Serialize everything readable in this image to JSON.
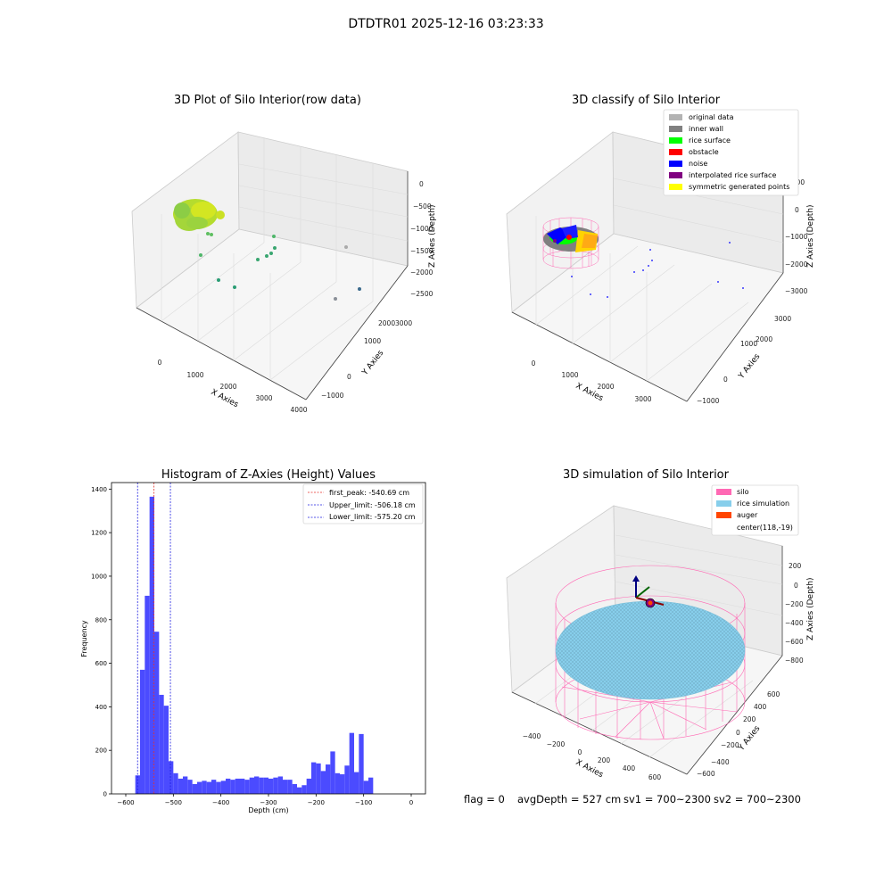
{
  "figure_title": "DTDTR01 2025-12-16 03:23:33",
  "footer": {
    "flag": "flag = 0",
    "avg_depth": "avgDepth = 527 cm",
    "sv1": "sv1 = 700~2300",
    "sv2": "sv2 = 700~2300"
  },
  "colors": {
    "original": "#b3b3b3",
    "inner_wall": "#808080",
    "rice_surface": "#00ff00",
    "obstacle": "#ff0000",
    "noise": "#0000ff",
    "interpolated": "#800080",
    "symmetric": "#ffff00",
    "silo": "#ff69b4",
    "rice_sim": "#87ceeb",
    "auger": "#ff4500",
    "hist_bar": "#4b4bff",
    "first_peak_line": "#e8312a",
    "limit_line": "#1c1ce0"
  },
  "chart_data": [
    {
      "type": "scatter",
      "title": "3D Plot of Silo Interior(row data)",
      "xlabel": "X Axies",
      "ylabel": "Y Axies",
      "zlabel": "Z Axies (Depth)",
      "x_ticks": [
        "0",
        "1000",
        "2000",
        "3000",
        "4000"
      ],
      "y_ticks": [
        "−1000",
        "0",
        "1000",
        "2000",
        "3000"
      ],
      "z_ticks": [
        "0",
        "−500",
        "−1000",
        "−1500",
        "−2000",
        "−2500"
      ]
    },
    {
      "type": "scatter",
      "title": "3D classify of Silo Interior",
      "xlabel": "X Axies",
      "ylabel": "Y Axies",
      "zlabel": "Z Axies (Depth)",
      "x_ticks": [
        "0",
        "1000",
        "2000",
        "3000"
      ],
      "y_ticks": [
        "−1000",
        "0",
        "1000",
        "2000",
        "3000"
      ],
      "z_ticks": [
        "1000",
        "0",
        "−1000",
        "−2000",
        "−3000"
      ],
      "legend": [
        "original data",
        "inner wall",
        "rice surface",
        "obstacle",
        "noise",
        "interpolated rice surface",
        "symmetric generated points"
      ],
      "legend_position": "top-right"
    },
    {
      "type": "bar",
      "title": "Histogram of Z-Axies (Height) Values",
      "xlabel": "Depth (cm)",
      "ylabel": "Frequency",
      "xlim": [
        -600,
        0
      ],
      "ylim": [
        0,
        1400
      ],
      "x_ticks": [
        "−600",
        "−500",
        "−400",
        "−300",
        "−200",
        "−100",
        "0"
      ],
      "y_ticks": [
        "0",
        "200",
        "400",
        "600",
        "800",
        "1000",
        "1200",
        "1400"
      ],
      "bins": {
        "start": -580,
        "width": 10
      },
      "values": [
        85,
        570,
        910,
        1365,
        745,
        455,
        405,
        150,
        95,
        70,
        80,
        65,
        45,
        55,
        60,
        55,
        65,
        55,
        60,
        70,
        65,
        70,
        70,
        65,
        75,
        80,
        75,
        75,
        70,
        75,
        80,
        65,
        65,
        45,
        30,
        40,
        70,
        145,
        140,
        105,
        135,
        195,
        95,
        90,
        130,
        280,
        100,
        275,
        60,
        75
      ],
      "lines": [
        {
          "label": "first_peak: -540.69 cm",
          "x": -540.69,
          "style": "red-dashed"
        },
        {
          "label": "Upper_limit: -506.18 cm",
          "x": -506.18,
          "style": "blue-dashed"
        },
        {
          "label": "Lower_limit: -575.20 cm",
          "x": -575.2,
          "style": "blue-dashed"
        }
      ],
      "legend_position": "top-right"
    },
    {
      "type": "scatter",
      "title": "3D simulation of Silo Interior",
      "xlabel": "X Axies",
      "ylabel": "Y Axies",
      "zlabel": "Z Axies (Depth)",
      "x_ticks": [
        "−400",
        "−200",
        "0",
        "200",
        "400",
        "600"
      ],
      "y_ticks": [
        "−600",
        "−400",
        "−200",
        "0",
        "200",
        "400",
        "600"
      ],
      "z_ticks": [
        "200",
        "0",
        "−200",
        "−400",
        "−600",
        "−800"
      ],
      "legend": [
        "silo",
        "rice simulation",
        "auger",
        "center(118,-19)"
      ],
      "legend_position": "top-right"
    }
  ]
}
